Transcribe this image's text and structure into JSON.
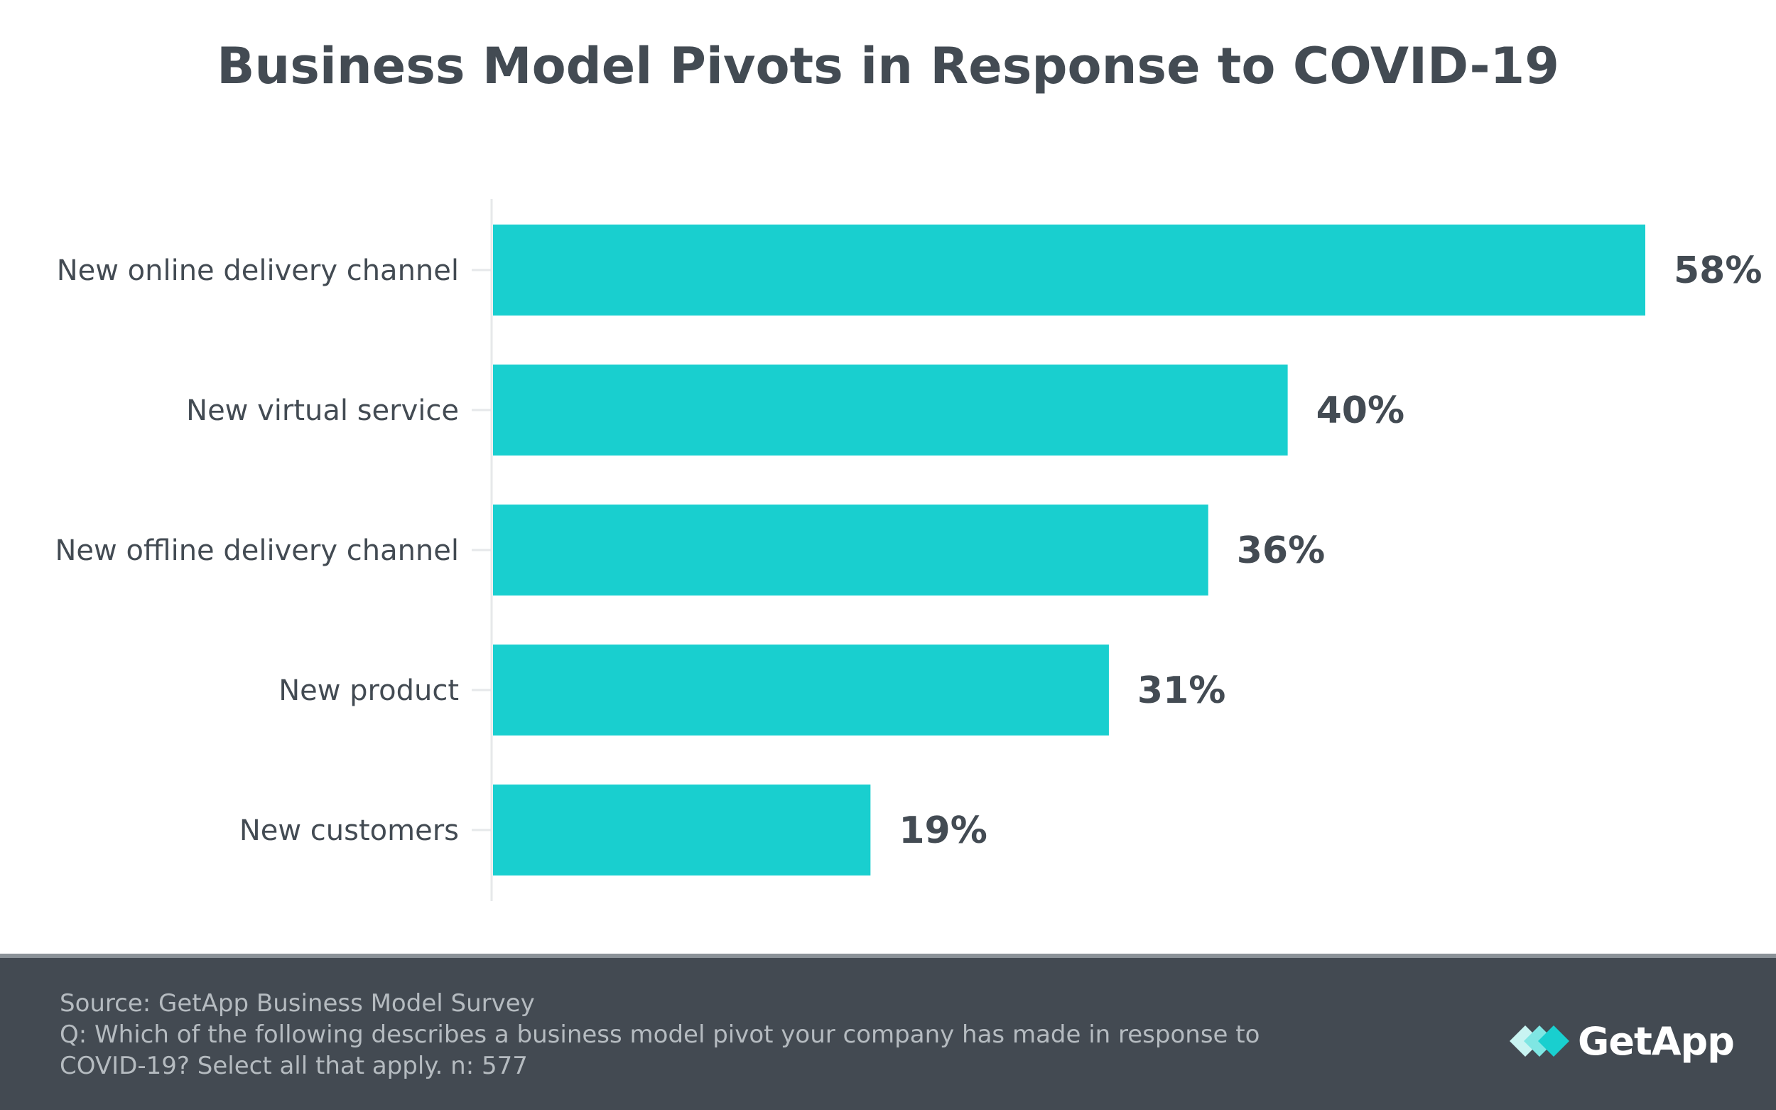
{
  "chart_data": {
    "type": "bar",
    "orientation": "horizontal",
    "title": "Business Model Pivots in Response to COVID-19",
    "categories": [
      "New online delivery channel",
      "New virtual service",
      "New offline delivery channel",
      "New product",
      "New customers"
    ],
    "values": [
      58,
      40,
      36,
      31,
      19
    ],
    "data_labels": [
      "58%",
      "40%",
      "36%",
      "31%",
      "19%"
    ],
    "unit": "%",
    "xlim": [
      0,
      58
    ],
    "xlabel": "",
    "ylabel": "",
    "grid": false,
    "legend": "none",
    "bar_color": "#19cfcf",
    "text_color": "#434b53"
  },
  "footer": {
    "source": "Source: GetApp Business Model Survey",
    "question_line1": "Q: Which of the following describes a business model pivot your company has made in response to",
    "question_line2": "COVID-19? Select all that apply. n: 577",
    "background_color": "#434a52"
  },
  "logo": {
    "name": "GetApp",
    "icon": "getapp-logo-icon",
    "colors": [
      "#19cfcf",
      "#7fe6e3",
      "#c9f4f2"
    ]
  }
}
